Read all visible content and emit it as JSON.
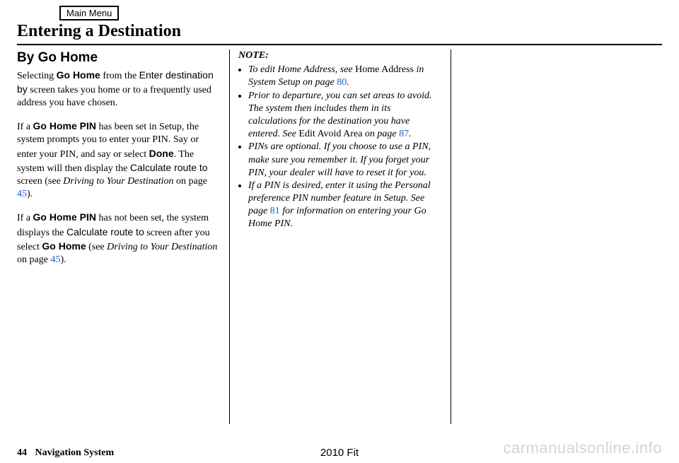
{
  "menu_button_label": "Main Menu",
  "section_title": "Entering a Destination",
  "footer": {
    "page_number": "44",
    "section_name": "Navigation System",
    "model": "2010 Fit"
  },
  "watermark": "carmanualsonline.info",
  "links": {
    "p45a": "45",
    "p45b": "45",
    "p80": "80",
    "p87": "87",
    "p81": "81"
  },
  "col1": {
    "heading": "By Go Home",
    "p1": {
      "pre": "Selecting ",
      "b1": "Go Home",
      "mid1": " from the ",
      "sans1": "Enter destination by",
      "post": " screen takes you home or to a frequently used address you have chosen."
    },
    "p2": {
      "pre": "If a ",
      "b1": "Go Home PIN",
      "mid1": " has been set in Setup, the system prompts you to enter your PIN. Say or enter your PIN, and say or select ",
      "b2": "Done",
      "mid2": ". The system will then display the ",
      "sans1": "Calculate route to",
      "mid3": " screen (see ",
      "ital1": "Driving to Your Destination",
      "mid4": " on page ",
      "post": ")."
    },
    "p3": {
      "pre": "If a ",
      "b1": "Go Home PIN",
      "mid1": " has not been set, the system displays the ",
      "sans1": "Calculate route to",
      "mid2": " screen after you select ",
      "b2": "Go Home",
      "mid3": " (see ",
      "ital1": "Driving to Your Destination",
      "mid4": " on page ",
      "post": ")."
    }
  },
  "col2": {
    "note_label": "NOTE:",
    "li1": {
      "pre": "To edit Home Address, see ",
      "roman1": "Home Address",
      "mid1": " in System Setup on page ",
      "post": "."
    },
    "li2": {
      "pre": "Prior to departure, you can set areas to avoid. The system then includes them in its calculations for the destination you have entered. See ",
      "roman1": "Edit Avoid Area",
      "mid1": " on page ",
      "post": "."
    },
    "li3": "PINs are optional. If you choose to use a PIN, make sure you remember it. If you forget your PIN, your dealer will have to reset it for you.",
    "li4": {
      "pre": "If a PIN is desired, enter it using the Personal preference PIN number feature in Setup. See page ",
      "post": " for information on entering your Go Home PIN."
    }
  }
}
